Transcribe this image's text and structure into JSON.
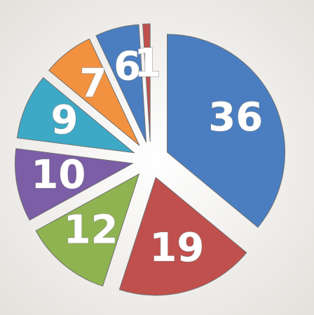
{
  "chart_data": {
    "type": "pie",
    "categories": [
      null,
      null,
      null,
      null,
      null,
      null,
      null,
      null
    ],
    "values": [
      36,
      19,
      12,
      10,
      9,
      7,
      6,
      1
    ],
    "colors": [
      "#4a7ec1",
      "#c0504d",
      "#8fb350",
      "#7b5ea6",
      "#3ea9c6",
      "#f2913f",
      "#4a7ec1",
      "#c0504d"
    ]
  }
}
